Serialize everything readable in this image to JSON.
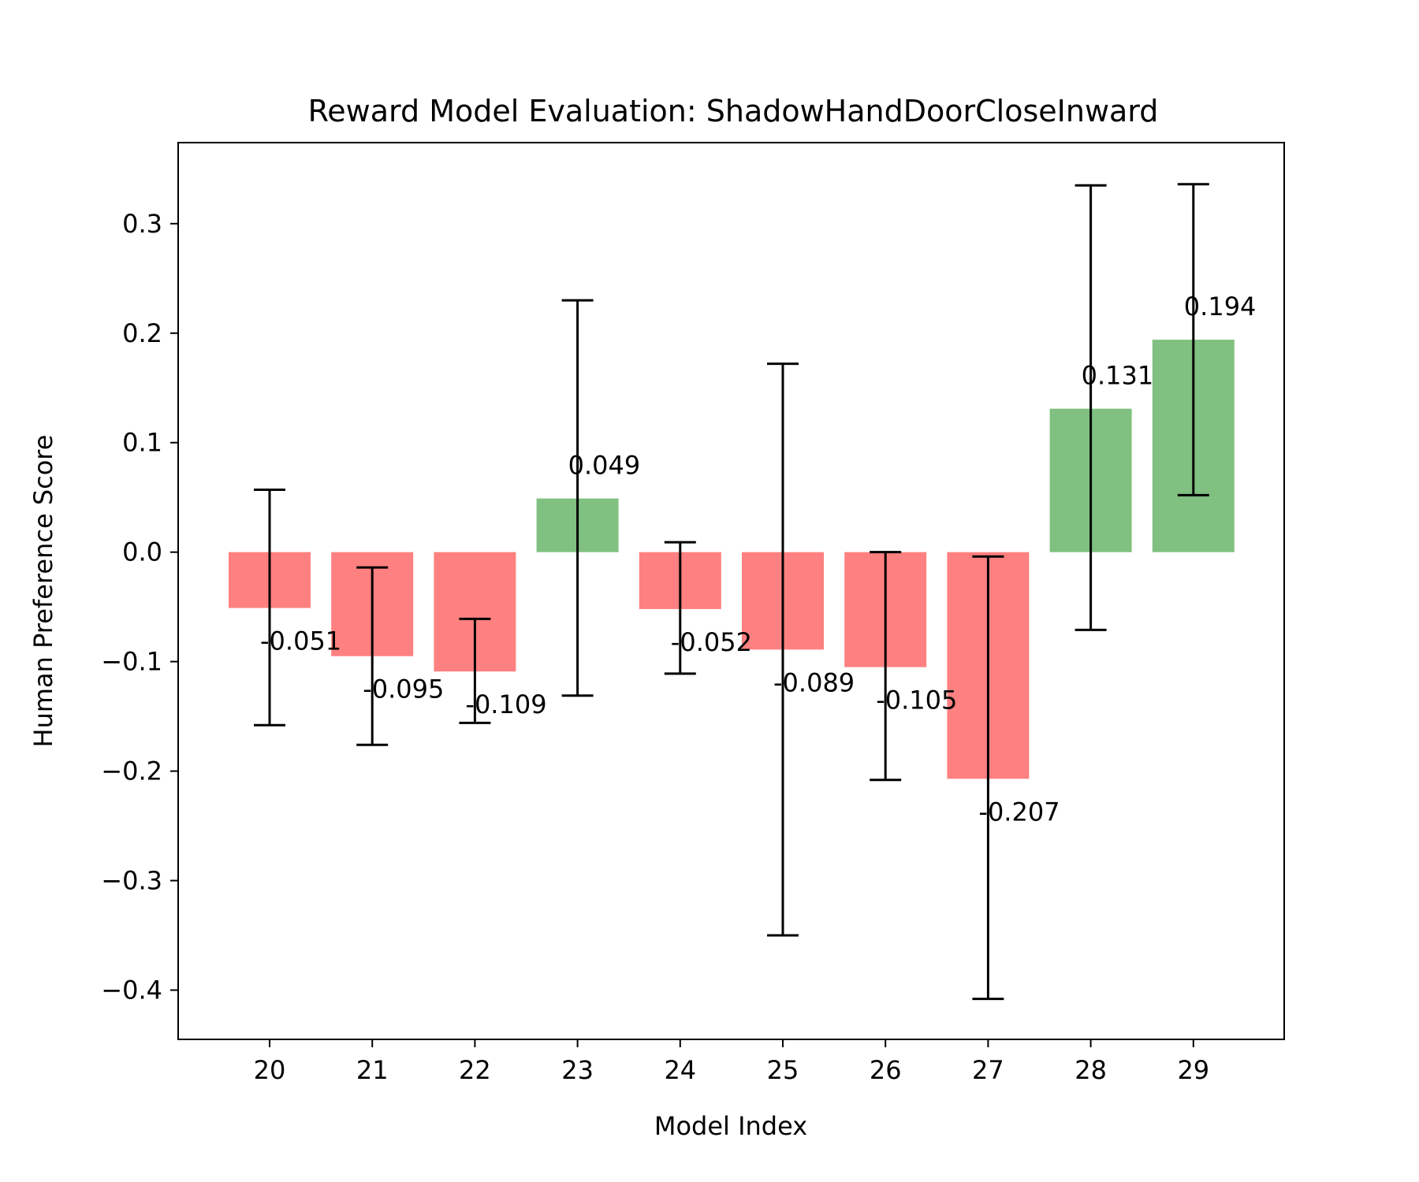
{
  "chart_data": {
    "type": "bar",
    "title": "Reward Model Evaluation: ShadowHandDoorCloseInward",
    "xlabel": "Model Index",
    "ylabel": "Human Preference Score",
    "categories": [
      "20",
      "21",
      "22",
      "23",
      "24",
      "25",
      "26",
      "27",
      "28",
      "29"
    ],
    "values": [
      -0.051,
      -0.095,
      -0.109,
      0.049,
      -0.052,
      -0.089,
      -0.105,
      -0.207,
      0.131,
      0.194
    ],
    "value_labels": [
      "-0.051",
      "-0.095",
      "-0.109",
      "0.049",
      "-0.052",
      "-0.089",
      "-0.105",
      "-0.207",
      "0.131",
      "0.194"
    ],
    "error_low": [
      -0.158,
      -0.176,
      -0.156,
      -0.131,
      -0.111,
      -0.35,
      -0.208,
      -0.408,
      -0.071,
      0.052
    ],
    "error_high": [
      0.057,
      -0.014,
      -0.061,
      0.23,
      0.009,
      0.172,
      0.0,
      -0.004,
      0.335,
      0.336
    ],
    "ylim": [
      -0.445,
      0.374
    ],
    "yticks": [
      -0.4,
      -0.3,
      -0.2,
      -0.1,
      0.0,
      0.1,
      0.2,
      0.3
    ],
    "ytick_labels": [
      "−0.4",
      "−0.3",
      "−0.2",
      "−0.1",
      "0.0",
      "0.1",
      "0.2",
      "0.3"
    ],
    "positive_color": "#80c080",
    "negative_color": "#ff8080",
    "errorbar_color": "#000000",
    "grid": false
  }
}
